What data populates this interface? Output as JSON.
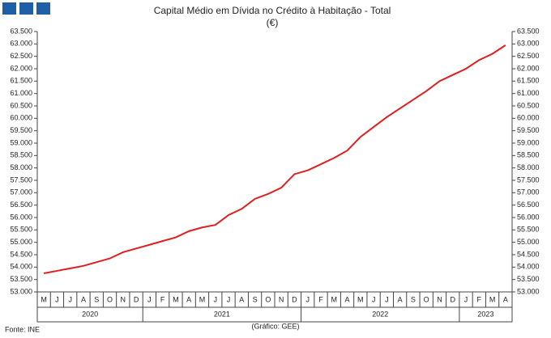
{
  "chart_data": {
    "type": "line",
    "title": "Capital Médio em Dívida no Crédito à Habitação - Total",
    "subtitle": "(€)",
    "source": "Fonte: INE",
    "credit": "(Gráfico: GEE)",
    "categories": [
      "M",
      "J",
      "J",
      "A",
      "S",
      "O",
      "N",
      "D",
      "J",
      "F",
      "M",
      "A",
      "M",
      "J",
      "J",
      "A",
      "S",
      "O",
      "N",
      "D",
      "J",
      "F",
      "M",
      "A",
      "M",
      "J",
      "J",
      "A",
      "S",
      "O",
      "N",
      "D",
      "J",
      "F",
      "M",
      "A"
    ],
    "years": [
      "2020",
      "2021",
      "2022",
      "2023"
    ],
    "series": [
      {
        "name": "Capital Médio em Dívida",
        "color": "#e01e1e",
        "values": [
          53750,
          53850,
          53950,
          54050,
          54200,
          54350,
          54600,
          54750,
          54900,
          55050,
          55200,
          55450,
          55600,
          55700,
          56100,
          56350,
          56750,
          56950,
          57200,
          57750,
          57900,
          58150,
          58400,
          58700,
          59250,
          59650,
          60050,
          60400,
          60750,
          61100,
          61500,
          61750,
          62000,
          62350,
          62600,
          62950
        ]
      }
    ],
    "ylim": [
      53000,
      63500
    ],
    "yticks": [
      {
        "value": 53000,
        "label": "53.000"
      },
      {
        "value": 53500,
        "label": "53.500"
      },
      {
        "value": 54000,
        "label": "54.000"
      },
      {
        "value": 54500,
        "label": "54.500"
      },
      {
        "value": 55000,
        "label": "55.000"
      },
      {
        "value": 55500,
        "label": "55.500"
      },
      {
        "value": 56000,
        "label": "56.000"
      },
      {
        "value": 56500,
        "label": "56.500"
      },
      {
        "value": 57000,
        "label": "57.000"
      },
      {
        "value": 57500,
        "label": "57.500"
      },
      {
        "value": 58000,
        "label": "58.000"
      },
      {
        "value": 58500,
        "label": "58.500"
      },
      {
        "value": 59000,
        "label": "59.000"
      },
      {
        "value": 59500,
        "label": "59.500"
      },
      {
        "value": 60000,
        "label": "60.000"
      },
      {
        "value": 60500,
        "label": "60.500"
      },
      {
        "value": 61000,
        "label": "61.000"
      },
      {
        "value": 61500,
        "label": "61.500"
      },
      {
        "value": 62000,
        "label": "62.000"
      },
      {
        "value": 62500,
        "label": "62.500"
      },
      {
        "value": 63000,
        "label": "63.000"
      },
      {
        "value": 63500,
        "label": "63.500"
      }
    ],
    "grid": false
  }
}
